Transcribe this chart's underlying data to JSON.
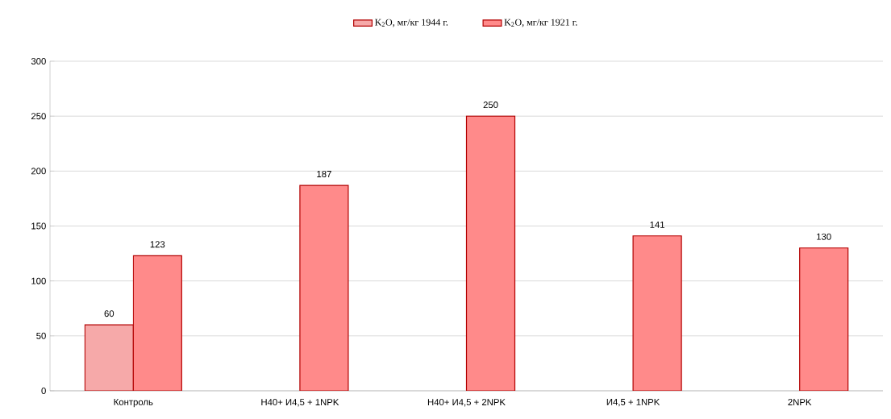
{
  "chart_data": {
    "type": "bar",
    "categories": [
      "Контроль",
      "Н40+ И4,5 + 1NPK",
      "Н40+ И4,5 + 2NPK",
      "И4,5 + 1NPK",
      "2NPK"
    ],
    "series": [
      {
        "name": "K$_{2}$O, мг/кг 1944 г.",
        "color": "#f6a9a9",
        "values": [
          60,
          null,
          null,
          null,
          null
        ]
      },
      {
        "name": "K$_{2}$O, мг/кг 1921 г.",
        "color": "#ff8a8a",
        "values": [
          123,
          187,
          250,
          141,
          130
        ]
      }
    ],
    "ylim": [
      0,
      300
    ],
    "yticks": [
      0,
      50,
      100,
      150,
      200,
      250,
      300
    ],
    "grid": "y",
    "legend": "top",
    "data_labels": true
  }
}
